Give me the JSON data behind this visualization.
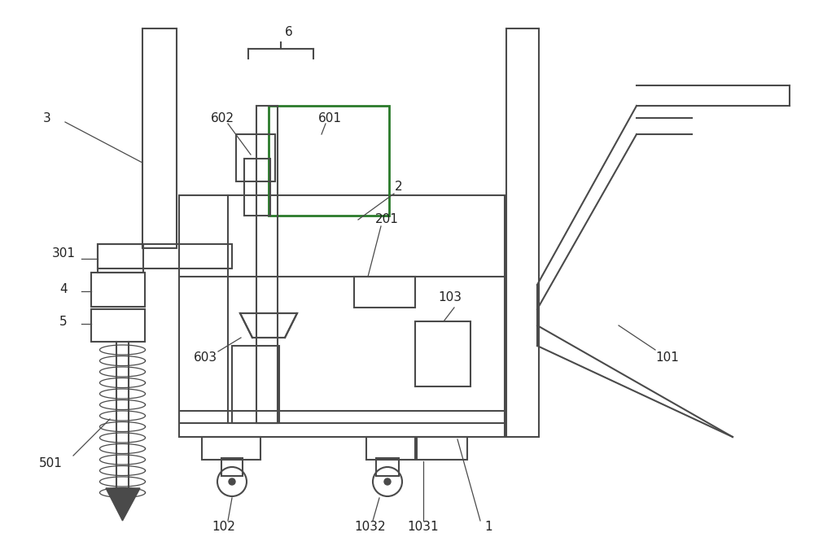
{
  "bg_color": "#ffffff",
  "line_color": "#4a4a4a",
  "line_width": 1.5,
  "label_color": "#222222",
  "label_fs": 11
}
